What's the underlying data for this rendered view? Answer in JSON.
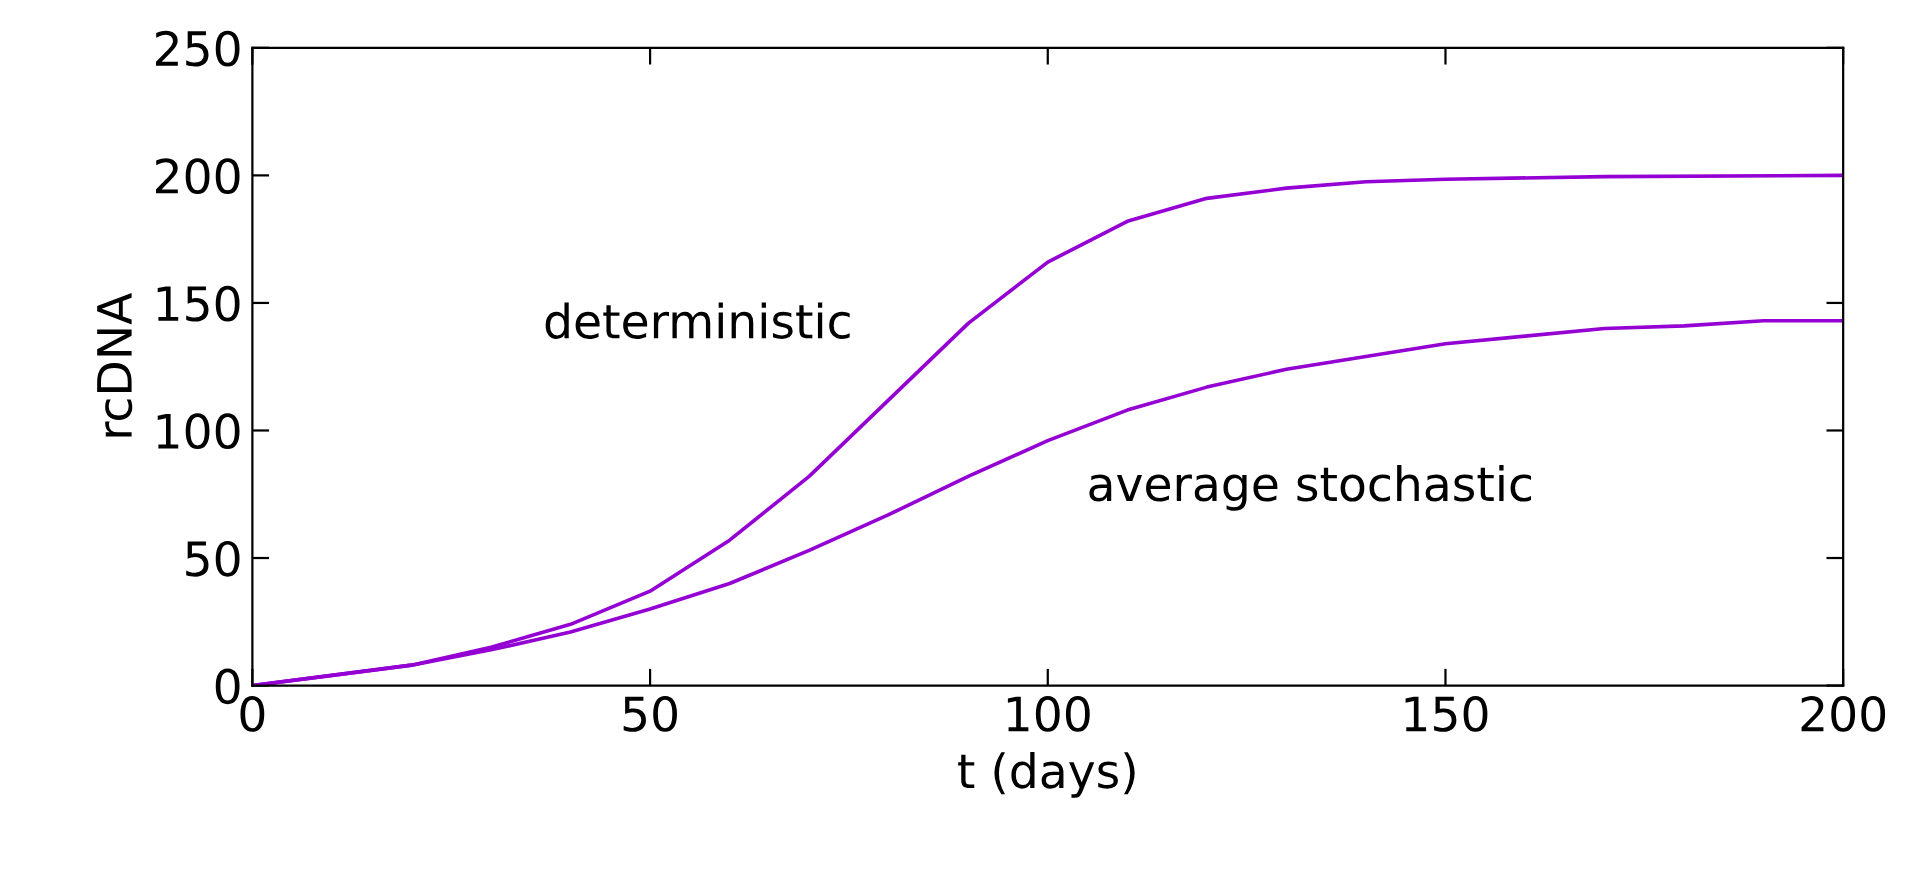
{
  "chart_data": {
    "type": "line",
    "xlabel": "t (days)",
    "ylabel": "rcDNA",
    "xlim": [
      0,
      200
    ],
    "ylim": [
      0,
      250
    ],
    "xticks": [
      0,
      50,
      100,
      150,
      200
    ],
    "yticks": [
      0,
      50,
      100,
      150,
      200,
      250
    ],
    "grid": false,
    "legend": false,
    "marker": "none",
    "line_style": "solid",
    "series": [
      {
        "color": "#9400d3",
        "x": [
          0,
          10,
          20,
          30,
          40,
          50,
          60,
          70,
          80,
          90,
          100,
          110,
          120,
          130,
          140,
          150,
          170,
          200
        ],
        "values": [
          0,
          4,
          8,
          15,
          24,
          37,
          57,
          82,
          112,
          142,
          166,
          182,
          191,
          195,
          197.5,
          198.5,
          199.5,
          200
        ]
      },
      {
        "color": "#9400d3",
        "x": [
          0,
          10,
          20,
          30,
          40,
          50,
          60,
          70,
          80,
          90,
          100,
          110,
          120,
          130,
          140,
          150,
          160,
          170,
          180,
          190,
          200
        ],
        "values": [
          0,
          4,
          8,
          14,
          21,
          30,
          40,
          53,
          67,
          82,
          96,
          108,
          117,
          124,
          129,
          134,
          137,
          140,
          141,
          143,
          143
        ]
      }
    ],
    "annotations": [
      "deterministic",
      "average stochastic"
    ]
  }
}
